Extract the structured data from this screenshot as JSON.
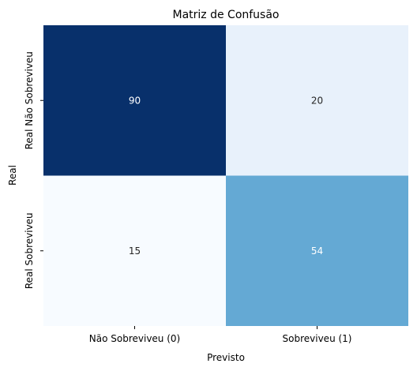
{
  "chart_data": {
    "type": "heatmap",
    "title": "Matriz de Confusão",
    "xlabel": "Previsto",
    "ylabel": "Real",
    "x_categories": [
      "Não Sobreviveu (0)",
      "Sobreviveu (1)"
    ],
    "y_categories": [
      "Real Não Sobreviveu",
      "Real Sobreviveu"
    ],
    "values": [
      [
        90,
        20
      ],
      [
        15,
        54
      ]
    ],
    "colormap": "Blues",
    "colorbar": false,
    "cell_colors": [
      [
        "#08306b",
        "#e8f1fb"
      ],
      [
        "#f7fbff",
        "#64a9d4"
      ]
    ],
    "annotation_colors": [
      [
        "#ffffff",
        "#262626"
      ],
      [
        "#262626",
        "#ffffff"
      ]
    ]
  }
}
